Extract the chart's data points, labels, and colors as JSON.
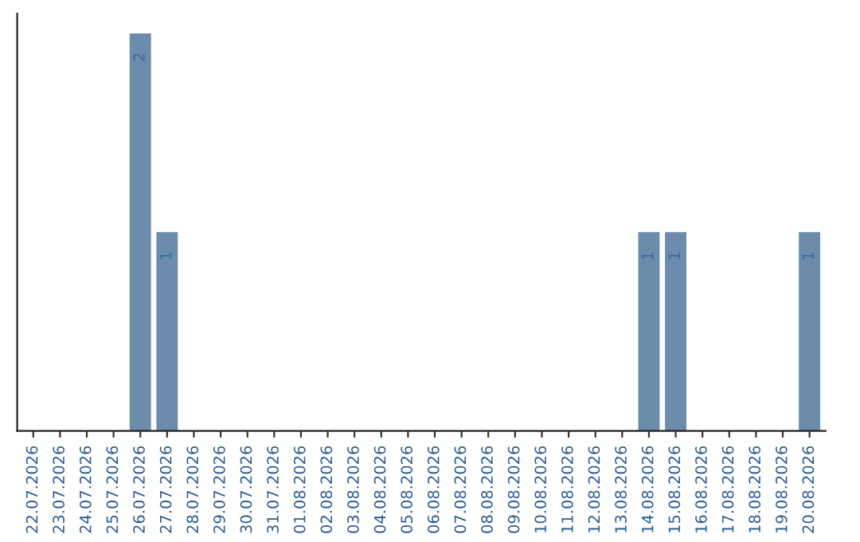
{
  "chart_data": {
    "type": "bar",
    "categories": [
      "22.07.2026",
      "23.07.2026",
      "24.07.2026",
      "25.07.2026",
      "26.07.2026",
      "27.07.2026",
      "28.07.2026",
      "29.07.2026",
      "30.07.2026",
      "31.07.2026",
      "01.08.2026",
      "02.08.2026",
      "03.08.2026",
      "04.08.2026",
      "05.08.2026",
      "06.08.2026",
      "07.08.2026",
      "08.08.2026",
      "09.08.2026",
      "10.08.2026",
      "11.08.2026",
      "12.08.2026",
      "13.08.2026",
      "14.08.2026",
      "15.08.2026",
      "16.08.2026",
      "17.08.2026",
      "18.08.2026",
      "19.08.2026",
      "20.08.2026"
    ],
    "values": [
      0,
      0,
      0,
      0,
      2,
      1,
      0,
      0,
      0,
      0,
      0,
      0,
      0,
      0,
      0,
      0,
      0,
      0,
      0,
      0,
      0,
      0,
      0,
      1,
      1,
      0,
      0,
      0,
      0,
      1
    ],
    "value_labels": [
      null,
      null,
      null,
      null,
      "2",
      "1",
      null,
      null,
      null,
      null,
      null,
      null,
      null,
      null,
      null,
      null,
      null,
      null,
      null,
      null,
      null,
      null,
      null,
      "1",
      "1",
      null,
      null,
      null,
      null,
      "1"
    ],
    "color": "#6b8cab",
    "ylim": [
      0,
      2.1
    ],
    "tick_labels": "x",
    "grid": false,
    "legend": false
  }
}
